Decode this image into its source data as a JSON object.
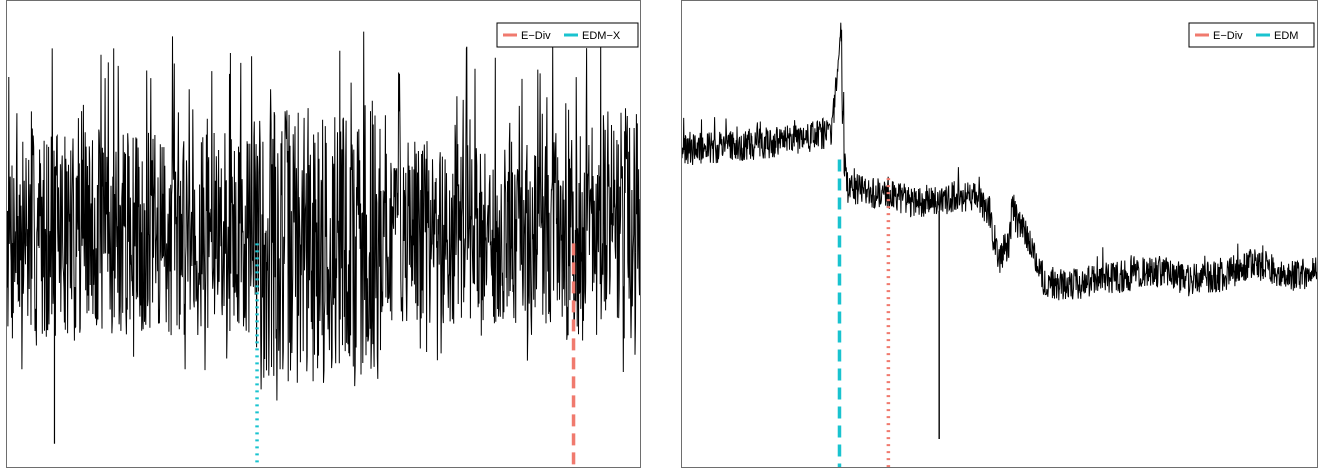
{
  "colors": {
    "series": "#000000",
    "e_div": "#f07a6e",
    "edm": "#19c3cf",
    "frame": "#6e6e6e"
  },
  "chart_data": [
    {
      "type": "line",
      "title": "",
      "xlabel": "",
      "ylabel": "",
      "axes_shown": false,
      "grid": false,
      "legend_position": "top-right",
      "legend": [
        {
          "label": "E−Div",
          "color": "#f07a6e"
        },
        {
          "label": "EDM−X",
          "color": "#19c3cf"
        }
      ],
      "xlim": [
        0,
        1
      ],
      "ylim": [
        0,
        1
      ],
      "series_description_by_segment": [
        {
          "x": [
            0.0,
            0.39
          ],
          "baseline": 0.5,
          "spread": 0.22
        },
        {
          "x": [
            0.39,
            0.59
          ],
          "baseline": 0.48,
          "spread": 0.3
        },
        {
          "x": [
            0.59,
            0.88
          ],
          "baseline": 0.5,
          "spread": 0.2
        },
        {
          "x": [
            0.88,
            1.0
          ],
          "baseline": 0.52,
          "spread": 0.25
        }
      ],
      "spikes": [
        {
          "x": 0.075,
          "y": 0.05
        }
      ],
      "change_points": [
        {
          "method": "EDM−X",
          "x": 0.395,
          "style": "dotted",
          "color": "#19c3cf"
        },
        {
          "method": "E−Div",
          "x": 0.895,
          "style": "dashed",
          "color": "#f07a6e"
        }
      ]
    },
    {
      "type": "line",
      "title": "",
      "xlabel": "",
      "ylabel": "",
      "axes_shown": false,
      "grid": false,
      "legend_position": "top-right",
      "legend": [
        {
          "label": "E−Div",
          "color": "#f07a6e"
        },
        {
          "label": "EDM",
          "color": "#19c3cf"
        }
      ],
      "xlim": [
        0,
        1
      ],
      "ylim": [
        0,
        1
      ],
      "series_path": [
        [
          0.0,
          0.68
        ],
        [
          0.1,
          0.69
        ],
        [
          0.18,
          0.7
        ],
        [
          0.24,
          0.72
        ],
        [
          0.255,
          0.78
        ],
        [
          0.248,
          0.92
        ],
        [
          0.252,
          0.7
        ],
        [
          0.26,
          0.6
        ],
        [
          0.3,
          0.59
        ],
        [
          0.36,
          0.57
        ],
        [
          0.46,
          0.58
        ],
        [
          0.485,
          0.55
        ],
        [
          0.49,
          0.5
        ],
        [
          0.5,
          0.45
        ],
        [
          0.515,
          0.48
        ],
        [
          0.52,
          0.55
        ],
        [
          0.53,
          0.52
        ],
        [
          0.55,
          0.48
        ],
        [
          0.57,
          0.4
        ],
        [
          0.6,
          0.39
        ],
        [
          0.65,
          0.4
        ],
        [
          0.7,
          0.41
        ],
        [
          0.75,
          0.42
        ],
        [
          0.8,
          0.4
        ],
        [
          0.85,
          0.41
        ],
        [
          0.9,
          0.44
        ],
        [
          0.95,
          0.41
        ],
        [
          1.0,
          0.42
        ]
      ],
      "spikes": [
        {
          "x": 0.405,
          "y": 0.06
        }
      ],
      "change_points": [
        {
          "method": "EDM",
          "x": 0.248,
          "style": "dashed",
          "color": "#19c3cf"
        },
        {
          "method": "E−Div",
          "x": 0.325,
          "style": "dotted",
          "color": "#f07a6e"
        }
      ]
    }
  ]
}
